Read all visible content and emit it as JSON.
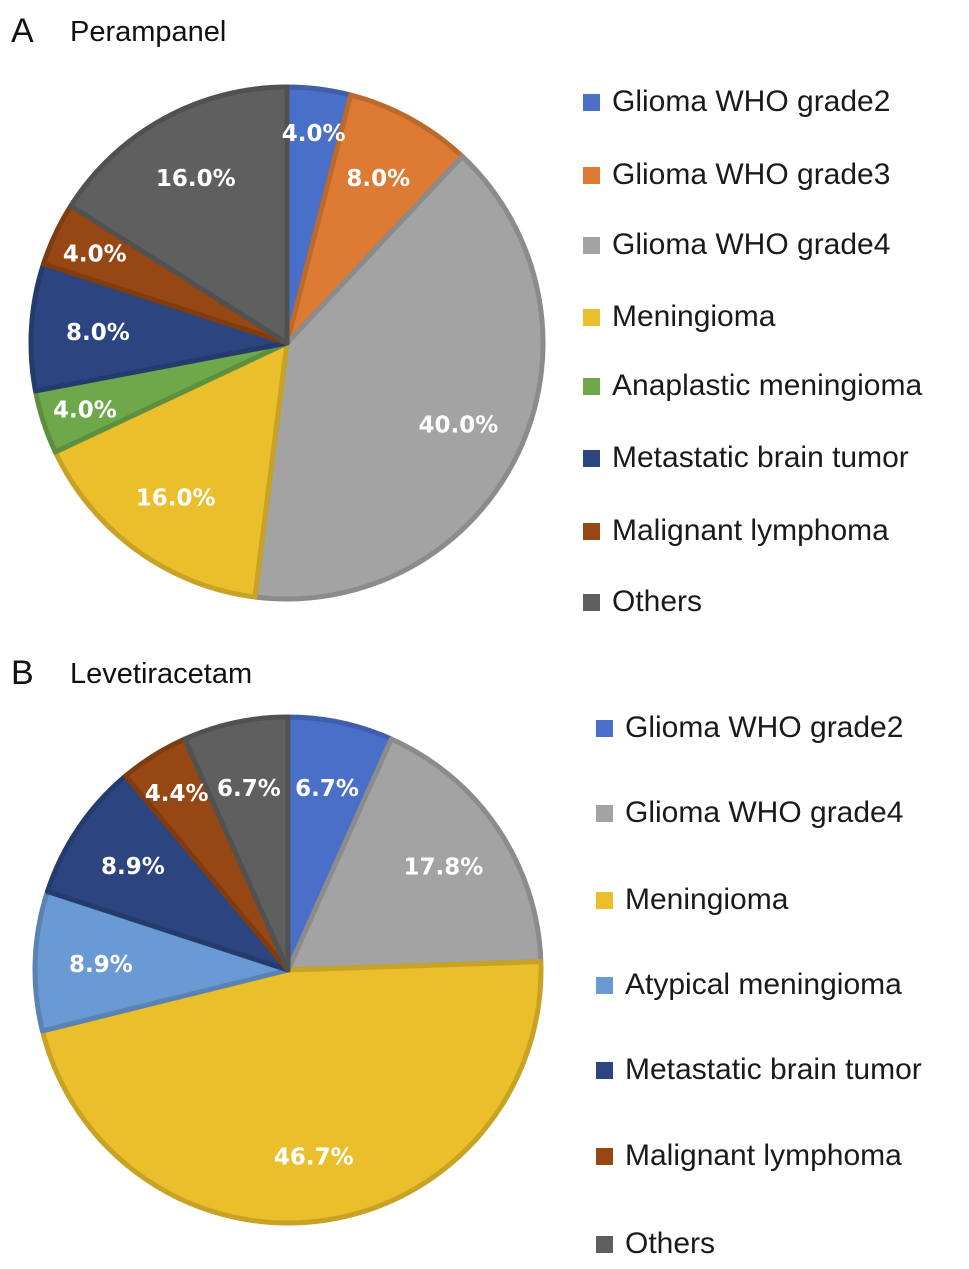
{
  "chart_data": [
    {
      "type": "pie",
      "panel": "A",
      "title": "Perampanel",
      "categories": [
        "Glioma WHO grade2",
        "Glioma WHO grade3",
        "Glioma WHO grade4",
        "Meningioma",
        "Anaplastic meningioma",
        "Metastatic brain tumor",
        "Malignant lymphoma",
        "Others"
      ],
      "values": [
        4.0,
        8.0,
        40.0,
        16.0,
        4.0,
        8.0,
        4.0,
        16.0
      ],
      "labels": [
        "4.0%",
        "8.0%",
        "40.0%",
        "16.0%",
        "4.0%",
        "8.0%",
        "4.0%",
        "16.0%"
      ],
      "colors": [
        "#4A6FC9",
        "#DD7B34",
        "#A3A3A3",
        "#EBBE2C",
        "#6EA84A",
        "#2C4580",
        "#974714",
        "#5F5F5F"
      ],
      "legend": "right",
      "start": "top, clockwise"
    },
    {
      "type": "pie",
      "panel": "B",
      "title": "Levetiracetam",
      "categories": [
        "Glioma WHO grade2",
        "Glioma WHO grade4",
        "Meningioma",
        "Atypical meningioma",
        "Metastatic brain tumor",
        "Malignant lymphoma",
        "Others"
      ],
      "values": [
        6.7,
        17.8,
        46.7,
        8.9,
        8.9,
        4.4,
        6.7
      ],
      "labels": [
        "6.7%",
        "17.8%",
        "46.7%",
        "8.9%",
        "8.9%",
        "4.4%",
        "6.7%"
      ],
      "colors": [
        "#4A6FC9",
        "#A3A3A3",
        "#EBBE2C",
        "#6A9AD3",
        "#2C4580",
        "#974714",
        "#5F5F5F"
      ],
      "legend": "right",
      "start": "top, clockwise"
    }
  ]
}
